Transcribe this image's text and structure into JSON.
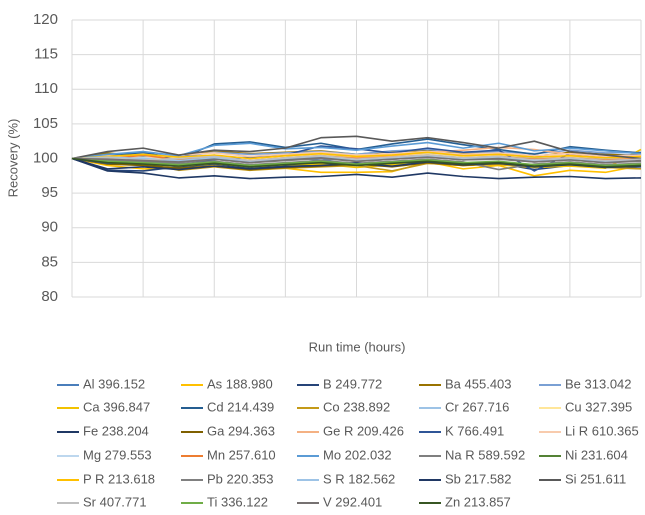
{
  "chart_data": {
    "type": "line",
    "y_label": "Recovery (%)",
    "x_label": "Run time (hours)",
    "categories": [
      null,
      null,
      null,
      null,
      null,
      null,
      null,
      null,
      null,
      null,
      null,
      null,
      null,
      null,
      null,
      null,
      null
    ],
    "ylim": [
      80,
      120
    ],
    "yticks": [
      80,
      85,
      90,
      95,
      100,
      105,
      110,
      115,
      120
    ],
    "grid": true,
    "series": [
      {
        "name": "Al 396.152",
        "color": "#4a7ebb",
        "values": [
          100,
          99.6,
          100.2,
          99.4,
          100.1,
          99.8,
          100.3,
          99.7,
          100.2,
          99.9,
          100.4,
          99.8,
          100.1,
          99.6,
          100,
          99.7,
          100.2
        ]
      },
      {
        "name": "As 188.980",
        "color": "#ffc000",
        "values": [
          100,
          99,
          98.5,
          98.6,
          99,
          98.5,
          98.6,
          98,
          98,
          98.1,
          99.5,
          98.5,
          99,
          97.5,
          98.3,
          98,
          99
        ]
      },
      {
        "name": "B 249.772",
        "color": "#264478",
        "values": [
          100,
          98.3,
          98.2,
          98.8,
          99.2,
          98.6,
          98.9,
          99.1,
          99.4,
          98.9,
          99.6,
          99.1,
          99.3,
          98.4,
          99,
          98.8,
          98.6
        ]
      },
      {
        "name": "Ba 455.403",
        "color": "#997300",
        "values": [
          100,
          100.8,
          100.3,
          100.1,
          101.1,
          100.7,
          100.9,
          101.1,
          100.6,
          101,
          101.2,
          100.8,
          100.7,
          100.3,
          100.9,
          100.6,
          100.4
        ]
      },
      {
        "name": "Be 313.042",
        "color": "#7aa0d4",
        "values": [
          100,
          100.5,
          100.7,
          100.2,
          100.9,
          100.6,
          100.8,
          101,
          100.6,
          101.1,
          101.3,
          100.9,
          101,
          100.7,
          101.2,
          100.8,
          100.9
        ]
      },
      {
        "name": "Ca 396.847",
        "color": "#f2c200",
        "values": [
          100,
          99.4,
          99.2,
          98.9,
          99.3,
          98.8,
          99.1,
          99.2,
          98.7,
          99.1,
          99.3,
          99,
          99.1,
          98.7,
          98.9,
          98.6,
          101.3
        ]
      },
      {
        "name": "Cd 214.439",
        "color": "#255e91",
        "values": [
          100,
          100.3,
          100.9,
          99.9,
          102.1,
          102.4,
          101.6,
          102.2,
          101.3,
          102.1,
          102.8,
          102,
          101.3,
          100.6,
          101.7,
          101.2,
          100.8
        ]
      },
      {
        "name": "Co 238.892",
        "color": "#c49a18",
        "values": [
          100,
          99.5,
          99.3,
          98.3,
          98.8,
          98.3,
          98.6,
          98.8,
          99,
          98.2,
          99.3,
          99,
          99.2,
          98.8,
          99.1,
          98.7,
          98.5
        ]
      },
      {
        "name": "Cr 267.716",
        "color": "#9dc3e6",
        "values": [
          100,
          99.9,
          100.4,
          99.8,
          100.3,
          100.1,
          100.5,
          100.2,
          100.6,
          100.3,
          100.8,
          100.4,
          100.5,
          100.1,
          100.3,
          100,
          100.2
        ]
      },
      {
        "name": "Cu 327.395",
        "color": "#ffe699",
        "values": [
          100,
          100.2,
          99.9,
          100.1,
          100.4,
          99.8,
          100.2,
          100.5,
          100,
          100.3,
          100.6,
          100.2,
          100.4,
          99.9,
          100.2,
          99.8,
          100.1
        ]
      },
      {
        "name": "Fe 238.204",
        "color": "#1f3864",
        "values": [
          100,
          98.2,
          97.9,
          97.2,
          97.5,
          97.1,
          97.3,
          97.4,
          97.7,
          97.3,
          97.9,
          97.4,
          97.1,
          97.3,
          97.4,
          97.1,
          97.2
        ]
      },
      {
        "name": "Ga 294.363",
        "color": "#7f6000",
        "values": [
          100,
          99.2,
          99,
          98.6,
          98.9,
          98.4,
          98.7,
          98.9,
          99.2,
          98.8,
          99.4,
          99,
          99.3,
          98.9,
          99.2,
          98.8,
          98.9
        ]
      },
      {
        "name": "Ge R 209.426",
        "color": "#f4b183",
        "values": [
          100,
          100.1,
          99.7,
          99.9,
          100.2,
          99.6,
          100,
          100.3,
          100.1,
          100.4,
          100.9,
          101.2,
          101.6,
          101.3,
          100.6,
          100.2,
          100.4
        ]
      },
      {
        "name": "K 766.491",
        "color": "#2f5597",
        "values": [
          100,
          99.3,
          99.6,
          99.1,
          99.8,
          100.2,
          100.5,
          101.8,
          101.4,
          100.8,
          101.5,
          100.9,
          101.2,
          98.2,
          100.7,
          100.3,
          100.6
        ]
      },
      {
        "name": "Li R 610.365",
        "color": "#f8cbad",
        "values": [
          100,
          100.4,
          100.1,
          100.5,
          100.8,
          100.3,
          100.6,
          100.9,
          100.5,
          100.7,
          101,
          100.6,
          100.8,
          100.4,
          100.7,
          100.3,
          100.5
        ]
      },
      {
        "name": "Mg 279.553",
        "color": "#bdd7ee",
        "values": [
          100,
          99.8,
          100.1,
          99.6,
          99.9,
          99.5,
          99.8,
          100.1,
          99.7,
          100,
          100.3,
          99.9,
          100.1,
          99.6,
          99.8,
          99.5,
          99.7
        ]
      },
      {
        "name": "Mn 257.610",
        "color": "#ed7d31",
        "values": [
          100,
          99.9,
          100.5,
          99.8,
          100.2,
          99.7,
          100.1,
          100.4,
          100,
          100.2,
          100.5,
          100.1,
          100.3,
          99.9,
          100.1,
          99.8,
          100
        ]
      },
      {
        "name": "Mo 202.032",
        "color": "#5b9bd5",
        "values": [
          100,
          100.6,
          101,
          100.4,
          101.9,
          102.2,
          101.4,
          101.6,
          101.2,
          101.8,
          102.3,
          101.5,
          102.2,
          101.1,
          101.5,
          101.1,
          100.7
        ]
      },
      {
        "name": "Na R 589.592",
        "color": "#7f7f7f",
        "values": [
          100,
          99.7,
          99.5,
          99.2,
          99.6,
          99.1,
          99.4,
          99.7,
          99.3,
          99.6,
          99.9,
          99.5,
          98.4,
          99.2,
          99.5,
          99.1,
          99.3
        ]
      },
      {
        "name": "Ni 231.604",
        "color": "#548235",
        "values": [
          100,
          99.5,
          99.3,
          99,
          99.4,
          98.9,
          99.2,
          99.5,
          99.1,
          99.4,
          99.7,
          99.3,
          99.5,
          99,
          99.3,
          98.9,
          99.1
        ]
      },
      {
        "name": "P R 213.618",
        "color": "#ffc000",
        "values": [
          100,
          100.3,
          100.6,
          100.2,
          100.5,
          100,
          100.4,
          100.7,
          100.3,
          100.5,
          100.9,
          100.4,
          100.6,
          100.2,
          100.4,
          100.1,
          100.3
        ]
      },
      {
        "name": "Pb 220.353",
        "color": "#808080",
        "values": [
          100,
          99.8,
          99.6,
          99.4,
          99.9,
          99.4,
          99.7,
          100,
          99.6,
          99.9,
          100.2,
          99.8,
          99.9,
          99.5,
          99.8,
          99.4,
          99.6
        ]
      },
      {
        "name": "S R 182.562",
        "color": "#9dc3e6",
        "values": [
          100,
          100.2,
          100,
          99.7,
          100.1,
          99.6,
          99.9,
          100.2,
          99.8,
          100.1,
          100.4,
          100,
          100.2,
          99.7,
          100,
          99.6,
          99.8
        ]
      },
      {
        "name": "Sb 217.582",
        "color": "#203864",
        "values": [
          100,
          98.5,
          98.8,
          98.4,
          98.9,
          98.5,
          98.8,
          99,
          99.3,
          98.9,
          99.5,
          99.1,
          99.3,
          98.8,
          99.1,
          98.7,
          98.9
        ]
      },
      {
        "name": "Si 251.611",
        "color": "#595959",
        "values": [
          100,
          101,
          101.5,
          100.5,
          101.2,
          101,
          101.5,
          103,
          103.2,
          102.5,
          103,
          102.3,
          101.5,
          102.5,
          101,
          100.5,
          100
        ]
      },
      {
        "name": "Sr 407.771",
        "color": "#bfbfbf",
        "values": [
          100,
          100.1,
          99.8,
          100,
          100.3,
          99.7,
          100.1,
          100.4,
          99.9,
          100.2,
          100.5,
          100.1,
          100.3,
          99.8,
          100.1,
          99.7,
          99.9
        ]
      },
      {
        "name": "Ti 336.122",
        "color": "#70ad47",
        "values": [
          100,
          99.6,
          99.4,
          99.1,
          99.5,
          99,
          99.3,
          99.6,
          99.2,
          99.5,
          99.8,
          99.4,
          99.6,
          99.1,
          99.4,
          99,
          99.2
        ]
      },
      {
        "name": "V 292.401",
        "color": "#767171",
        "values": [
          100,
          99.9,
          99.7,
          99.5,
          99.9,
          99.4,
          99.8,
          100.1,
          99.6,
          99.9,
          100.2,
          99.8,
          100,
          99.5,
          99.8,
          99.4,
          99.7
        ]
      },
      {
        "name": "Zn 213.857",
        "color": "#375623",
        "values": [
          100,
          99.4,
          99.2,
          98.9,
          99.3,
          98.8,
          99.1,
          99.4,
          99,
          99.3,
          99.6,
          99.2,
          99.4,
          98.9,
          99.2,
          98.8,
          99
        ]
      }
    ]
  }
}
